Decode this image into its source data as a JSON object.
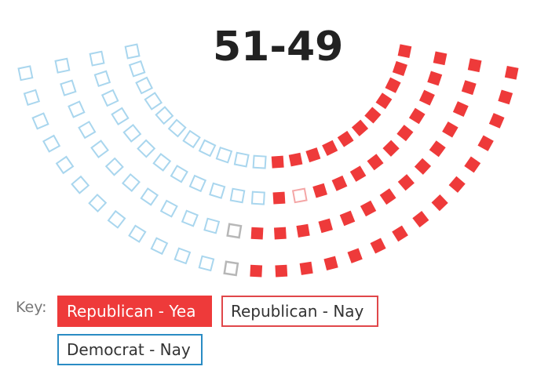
{
  "tally": "51-49",
  "key": {
    "label": "Key:",
    "items": [
      {
        "id": "rep-yea",
        "label": "Republican - Yea"
      },
      {
        "id": "rep-nay",
        "label": "Republican - Nay"
      },
      {
        "id": "dem-nay",
        "label": "Democrat - Nay"
      }
    ]
  },
  "colors": {
    "republican_yea": "#ee3a3a",
    "republican_nay_outline": "#f4a6a6",
    "democrat_nay_outline": "#a9d6ee",
    "vacant_outline": "#b7b7b7",
    "tally_text": "#222222"
  },
  "seats": {
    "rows_outer_to_inner": [
      {
        "row": 1,
        "seats": [
          "dem-nay",
          "dem-nay",
          "dem-nay",
          "dem-nay",
          "dem-nay",
          "dem-nay",
          "dem-nay",
          "dem-nay",
          "dem-nay",
          "dem-nay",
          "dem-nay",
          "dem-nay",
          "other",
          "rep-yea",
          "rep-yea",
          "rep-yea",
          "rep-yea",
          "rep-yea",
          "rep-yea",
          "rep-yea",
          "rep-yea",
          "rep-yea",
          "rep-yea",
          "rep-yea",
          "rep-yea",
          "rep-yea",
          "rep-yea",
          "rep-yea"
        ]
      },
      {
        "row": 2,
        "seats": [
          "dem-nay",
          "dem-nay",
          "dem-nay",
          "dem-nay",
          "dem-nay",
          "dem-nay",
          "dem-nay",
          "dem-nay",
          "dem-nay",
          "dem-nay",
          "dem-nay",
          "other",
          "rep-yea",
          "rep-yea",
          "rep-yea",
          "rep-yea",
          "rep-yea",
          "rep-yea",
          "rep-yea",
          "rep-yea",
          "rep-yea",
          "rep-yea",
          "rep-yea",
          "rep-yea",
          "rep-yea",
          "rep-yea"
        ]
      },
      {
        "row": 3,
        "seats": [
          "dem-nay",
          "dem-nay",
          "dem-nay",
          "dem-nay",
          "dem-nay",
          "dem-nay",
          "dem-nay",
          "dem-nay",
          "dem-nay",
          "dem-nay",
          "dem-nay",
          "dem-nay",
          "rep-yea",
          "rep-nay",
          "rep-yea",
          "rep-yea",
          "rep-yea",
          "rep-yea",
          "rep-yea",
          "rep-yea",
          "rep-yea",
          "rep-yea",
          "rep-yea",
          "rep-yea"
        ]
      },
      {
        "row": 4,
        "seats": [
          "dem-nay",
          "dem-nay",
          "dem-nay",
          "dem-nay",
          "dem-nay",
          "dem-nay",
          "dem-nay",
          "dem-nay",
          "dem-nay",
          "dem-nay",
          "dem-nay",
          "rep-yea",
          "rep-yea",
          "rep-yea",
          "rep-yea",
          "rep-yea",
          "rep-yea",
          "rep-yea",
          "rep-yea",
          "rep-yea",
          "rep-yea",
          "rep-yea"
        ]
      }
    ]
  }
}
